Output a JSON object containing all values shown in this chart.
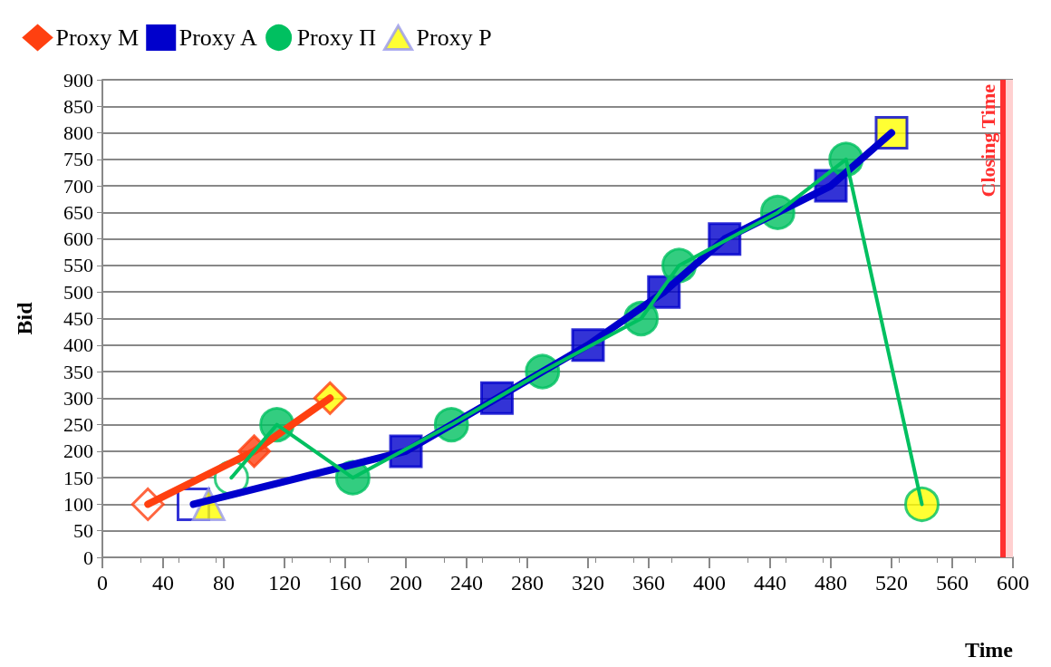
{
  "chart_data": {
    "type": "line",
    "xlabel": "Time",
    "ylabel": "Bid",
    "xlim": [
      0,
      600
    ],
    "xticks": [
      0,
      40,
      80,
      120,
      160,
      200,
      240,
      280,
      320,
      360,
      400,
      440,
      480,
      520,
      560,
      600
    ],
    "ylim": [
      0,
      900
    ],
    "yticks": [
      0,
      50,
      100,
      150,
      200,
      250,
      300,
      350,
      400,
      450,
      500,
      550,
      600,
      650,
      700,
      750,
      800,
      850,
      900
    ],
    "grid": "y",
    "legend": "top left",
    "line_style": "solid",
    "series": [
      {
        "name": "Proxy M",
        "color": "#ff4010",
        "marker": "diamond",
        "x": [
          30,
          100,
          150
        ],
        "values": [
          100,
          200,
          300
        ],
        "colors": [
          "#ffffff",
          "#ff4010",
          "#ffff00"
        ]
      },
      {
        "name": "Proxy A",
        "color": "#0000cc",
        "marker": "square",
        "x": [
          60,
          200,
          260,
          320,
          370,
          410,
          480,
          520
        ],
        "values": [
          100,
          200,
          300,
          400,
          500,
          600,
          700,
          800
        ],
        "colors": [
          "#ffffff",
          "#0000cc",
          "#0000cc",
          "#0000cc",
          "#0000cc",
          "#0000cc",
          "#0000cc",
          "#ffff00"
        ]
      },
      {
        "name": "Proxy Π",
        "color": "#00c060",
        "marker": "circle",
        "x": [
          85,
          115,
          165,
          230,
          290,
          355,
          380,
          445,
          490,
          540
        ],
        "values": [
          150,
          250,
          150,
          250,
          350,
          450,
          550,
          650,
          750,
          100
        ],
        "colors": [
          "#ffffff",
          "#00c060",
          "#00c060",
          "#00c060",
          "#00c060",
          "#00c060",
          "#00c060",
          "#00c060",
          "#00c060",
          "#ffff00"
        ]
      },
      {
        "name": "Proxy P",
        "color": "#9999ee",
        "marker": "triangle",
        "x": [
          70
        ],
        "values": [
          100
        ],
        "colors": [
          "#ffff00"
        ]
      }
    ],
    "ref_lines": [
      {
        "axis": "x",
        "value": 593,
        "label": "Closing Time",
        "color": "#ff3030",
        "line_style": "solid"
      }
    ],
    "bands": [
      {
        "axis": "x",
        "from": 593,
        "to": 600,
        "color": "#ffd0d0"
      }
    ]
  }
}
